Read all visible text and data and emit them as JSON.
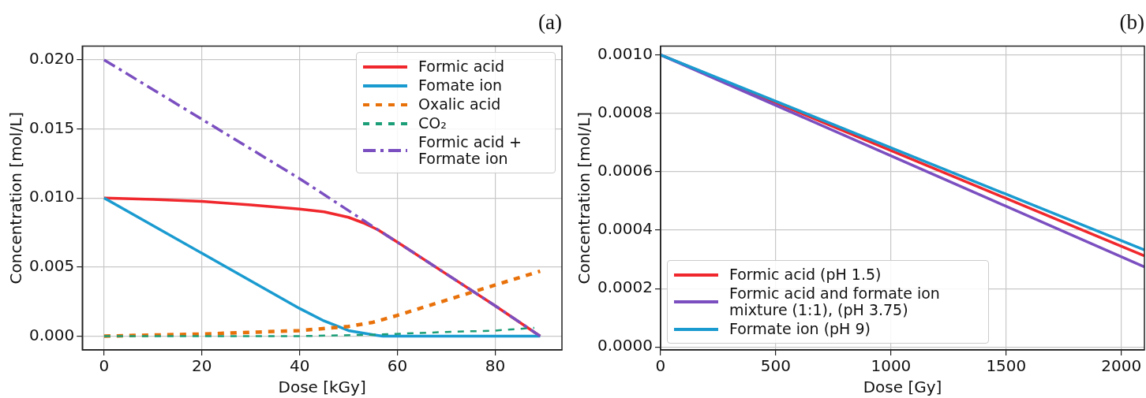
{
  "chart_data": [
    {
      "type": "line",
      "title": "(a)",
      "xlabel": "Dose [kGy]",
      "ylabel": "Concentration [mol/L]",
      "xlim": [
        -4.46,
        93.66
      ],
      "ylim": [
        -0.001,
        0.021
      ],
      "xticks": [
        0,
        20,
        40,
        60,
        80
      ],
      "yticks": [
        {
          "value": 0,
          "label": "0.000"
        },
        {
          "value": 0.005,
          "label": "0.005"
        },
        {
          "value": 0.01,
          "label": "0.010"
        },
        {
          "value": 0.015,
          "label": "0.015"
        },
        {
          "value": 0.02,
          "label": "0.020"
        }
      ],
      "grid": true,
      "legend": "top right",
      "series": [
        {
          "name": "Formic acid",
          "color": "#f0282d",
          "line_style": "solid",
          "x": [
            0,
            10,
            20,
            30,
            40,
            45,
            50,
            53,
            56,
            60,
            70,
            80,
            89.2
          ],
          "values": [
            0.01,
            0.0099,
            0.00975,
            0.0095,
            0.0092,
            0.009,
            0.0086,
            0.0082,
            0.0077,
            0.0068,
            0.0045,
            0.0022,
            0
          ]
        },
        {
          "name": "Fomate ion",
          "color": "#1a9bd0",
          "line_style": "solid",
          "x": [
            0,
            20,
            40,
            45,
            50,
            55,
            57,
            89.2
          ],
          "values": [
            0.01,
            0.006,
            0.002,
            0.0011,
            0.0004,
            0.0001,
            0,
            0
          ]
        },
        {
          "name": "Oxalic acid",
          "color": "#e8710a",
          "line_style": "dashed",
          "x": [
            0,
            20,
            40,
            50,
            55,
            60,
            70,
            80,
            89.2
          ],
          "values": [
            0,
            0.00015,
            0.0004,
            0.0007,
            0.001,
            0.0015,
            0.0026,
            0.0037,
            0.0047
          ]
        },
        {
          "name": "CO₂",
          "color": "#1b9e77",
          "line_style": "dashed",
          "x": [
            0,
            40,
            55,
            70,
            80,
            88
          ],
          "values": [
            0,
            0,
            0.0001,
            0.0003,
            0.0004,
            0.0006
          ]
        },
        {
          "name": "Formic acid + Formate ion",
          "color": "#7b4fc0",
          "line_style": "dashdot",
          "x": [
            0,
            20,
            40,
            56,
            60,
            80,
            89.2
          ],
          "values": [
            0.02,
            0.0157,
            0.0114,
            0.0077,
            0.0068,
            0.0022,
            0
          ]
        }
      ]
    },
    {
      "type": "line",
      "title": "(b)",
      "xlabel": "Dose [Gy]",
      "ylabel": "Concentration [mol/L]",
      "xlim": [
        0,
        2100
      ],
      "ylim": [
        -1e-05,
        0.00103
      ],
      "xticks": [
        0,
        500,
        1000,
        1500,
        2000
      ],
      "yticks": [
        {
          "value": 0,
          "label": "0.0000"
        },
        {
          "value": 0.0002,
          "label": "0.0002"
        },
        {
          "value": 0.0004,
          "label": "0.0004"
        },
        {
          "value": 0.0006,
          "label": "0.0006"
        },
        {
          "value": 0.0008,
          "label": "0.0008"
        },
        {
          "value": 0.001,
          "label": "0.0010"
        }
      ],
      "grid": true,
      "legend": "bottom left",
      "series": [
        {
          "name": "Formic acid (pH 1.5)",
          "color": "#f0282d",
          "x": [
            0,
            1050,
            2100
          ],
          "values": [
            0.001,
            0.000656,
            0.000312
          ]
        },
        {
          "name": "Formic acid and formate ion mixture (1:1), (pH 3.75)",
          "color": "#7b4fc0",
          "x": [
            0,
            1050,
            2100
          ],
          "values": [
            0.001,
            0.000637,
            0.000274
          ]
        },
        {
          "name": "Formate ion (pH 9)",
          "color": "#1a9bd0",
          "x": [
            0,
            1050,
            2100
          ],
          "values": [
            0.001,
            0.000666,
            0.000332
          ]
        }
      ]
    }
  ]
}
